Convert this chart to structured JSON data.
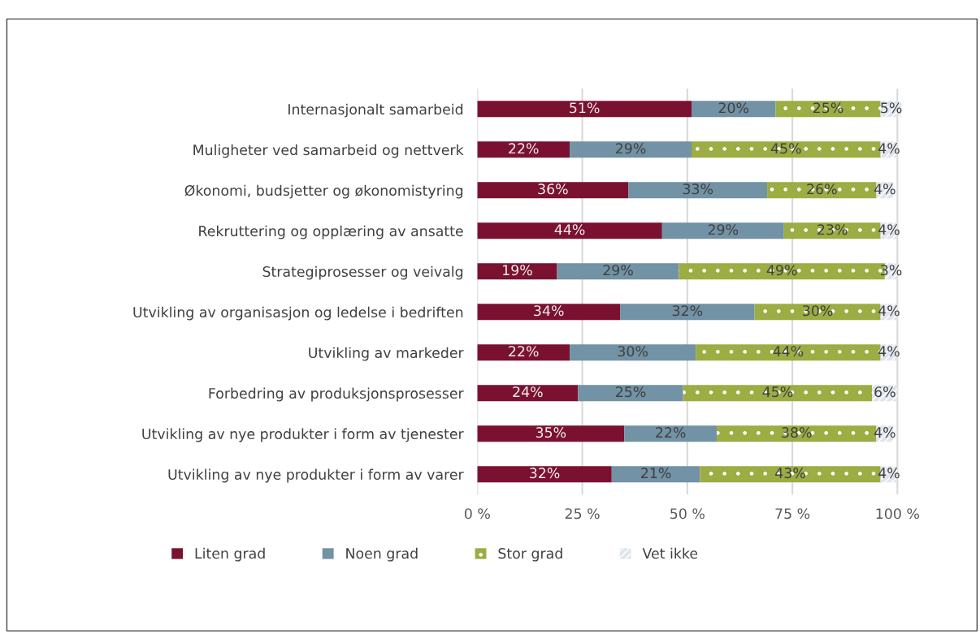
{
  "chart_data": {
    "type": "bar",
    "orientation": "horizontal",
    "stacked": true,
    "grid": "x",
    "legend": "bottom",
    "categories": [
      "Internasjonalt samarbeid",
      "Muligheter ved samarbeid og nettverk",
      "Økonomi, budsjetter og økonomistyring",
      "Rekruttering og opplæring av ansatte",
      "Strategiprosesser og veivalg",
      "Utvikling av organisasjon og ledelse i bedriften",
      "Utvikling av markeder",
      "Forbedring av produksjonsprosesser",
      "Utvikling av nye produkter i form av tjenester",
      "Utvikling av nye produkter i form av varer"
    ],
    "series": [
      {
        "name": "Liten grad",
        "color": "#7b1130",
        "values": [
          51,
          22,
          36,
          44,
          19,
          34,
          22,
          24,
          35,
          32
        ],
        "value_labels": [
          "51%",
          "22%",
          "36%",
          "44%",
          "19%",
          "34%",
          "22%",
          "24%",
          "35%",
          "32%"
        ]
      },
      {
        "name": "Noen grad",
        "color": "#7292a5",
        "values": [
          20,
          29,
          33,
          29,
          29,
          32,
          30,
          25,
          22,
          21
        ],
        "value_labels": [
          "20%",
          "29%",
          "33%",
          "29%",
          "29%",
          "32%",
          "30%",
          "25%",
          "22%",
          "21%"
        ]
      },
      {
        "name": "Stor grad",
        "color": "#9bad43",
        "values": [
          25,
          45,
          26,
          23,
          49,
          30,
          44,
          45,
          38,
          43
        ],
        "value_labels": [
          "25%",
          "45%",
          "26%",
          "23%",
          "49%",
          "30%",
          "44%",
          "45%",
          "38%",
          "43%"
        ]
      },
      {
        "name": "Vet ikke",
        "color": "#dfe5ee",
        "values": [
          5,
          4,
          4,
          4,
          3,
          4,
          4,
          6,
          4,
          4
        ],
        "value_labels": [
          "5%",
          "4%",
          "4%",
          "4%",
          "3%",
          "4%",
          "4%",
          "6%",
          "4%",
          "4%"
        ]
      }
    ],
    "xlim": [
      0,
      101
    ],
    "xticks": [
      {
        "value": 0,
        "label": "0 %"
      },
      {
        "value": 25,
        "label": "25 %"
      },
      {
        "value": 50,
        "label": "50 %"
      },
      {
        "value": 75,
        "label": "75 %"
      },
      {
        "value": 100,
        "label": "100 %"
      }
    ]
  }
}
